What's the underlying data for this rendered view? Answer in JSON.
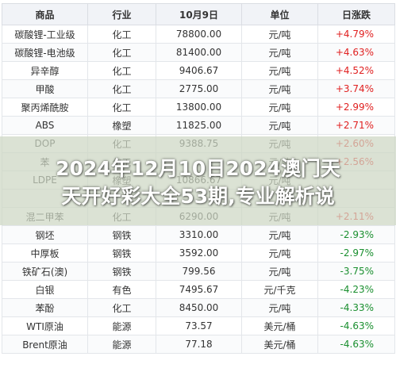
{
  "table": {
    "headers": [
      "商品",
      "行业",
      "10月9日",
      "单位",
      "日涨跌"
    ],
    "rows": [
      {
        "name": "碳酸锂-工业级",
        "industry": "化工",
        "price": "78800.00",
        "unit": "元/吨",
        "change": "+4.79%",
        "dir": "up"
      },
      {
        "name": "碳酸锂-电池级",
        "industry": "化工",
        "price": "81400.00",
        "unit": "元/吨",
        "change": "+4.63%",
        "dir": "up"
      },
      {
        "name": "异辛醇",
        "industry": "化工",
        "price": "9406.67",
        "unit": "元/吨",
        "change": "+4.52%",
        "dir": "up"
      },
      {
        "name": "甲酸",
        "industry": "化工",
        "price": "2775.00",
        "unit": "元/吨",
        "change": "+3.74%",
        "dir": "up"
      },
      {
        "name": "聚丙烯酰胺",
        "industry": "化工",
        "price": "13800.00",
        "unit": "元/吨",
        "change": "+2.99%",
        "dir": "up"
      },
      {
        "name": "ABS",
        "industry": "橡塑",
        "price": "11825.00",
        "unit": "元/吨",
        "change": "+2.71%",
        "dir": "up"
      },
      {
        "name": "DOP",
        "industry": "化工",
        "price": "9388.75",
        "unit": "元/吨",
        "change": "+2.60%",
        "dir": "up"
      },
      {
        "name": "苯",
        "industry": "化工",
        "price": "",
        "unit": "元/吨",
        "change": "+2.56%",
        "dir": "up"
      },
      {
        "name": "LDPE",
        "industry": "橡塑",
        "price": "10866.67",
        "unit": "元/吨",
        "change": "",
        "dir": "up"
      },
      {
        "name": "",
        "industry": "",
        "price": "",
        "unit": "",
        "change": "",
        "dir": "up"
      },
      {
        "name": "混二甲苯",
        "industry": "化工",
        "price": "6290.00",
        "unit": "元/吨",
        "change": "+2.11%",
        "dir": "up"
      },
      {
        "name": "钢坯",
        "industry": "钢铁",
        "price": "3310.00",
        "unit": "元/吨",
        "change": "-2.93%",
        "dir": "down"
      },
      {
        "name": "中厚板",
        "industry": "钢铁",
        "price": "3592.00",
        "unit": "元/吨",
        "change": "-2.97%",
        "dir": "down"
      },
      {
        "name": "铁矿石(澳)",
        "industry": "钢铁",
        "price": "799.56",
        "unit": "元/吨",
        "change": "-3.75%",
        "dir": "down"
      },
      {
        "name": "白银",
        "industry": "有色",
        "price": "7495.67",
        "unit": "元/千克",
        "change": "-4.23%",
        "dir": "down"
      },
      {
        "name": "苯酚",
        "industry": "化工",
        "price": "8450.00",
        "unit": "元/吨",
        "change": "-4.33%",
        "dir": "down"
      },
      {
        "name": "WTI原油",
        "industry": "能源",
        "price": "73.57",
        "unit": "美元/桶",
        "change": "-4.63%",
        "dir": "down"
      },
      {
        "name": "Brent原油",
        "industry": "能源",
        "price": "77.18",
        "unit": "美元/桶",
        "change": "-4.63%",
        "dir": "down"
      }
    ]
  },
  "overlay": {
    "line1": "2024年12月10日2024澳门天",
    "line2": "天开好彩大全53期,专业解析说"
  },
  "colors": {
    "up": "#e02020",
    "down": "#1a8f2f",
    "header_bg": "#f1f3f7"
  }
}
